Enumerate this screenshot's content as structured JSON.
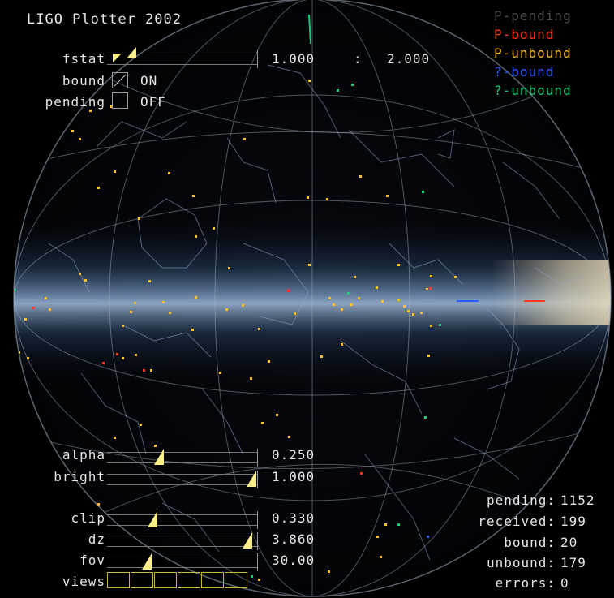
{
  "app": {
    "title": "LIGO Plotter 2002"
  },
  "legend": [
    {
      "label": "P-pending",
      "color": "#4a4a4a"
    },
    {
      "label": "P-bound",
      "color": "#ff3a1e"
    },
    {
      "label": "P-unbound",
      "color": "#ffc21a"
    },
    {
      "label": "?-bound",
      "color": "#2a5cff"
    },
    {
      "label": "?-unbound",
      "color": "#19d07a"
    }
  ],
  "controls": {
    "fstat": {
      "label": "fstat",
      "min": "1.000",
      "separator": ":",
      "max": "2.000"
    },
    "bound": {
      "label": "bound",
      "state": "ON"
    },
    "pending": {
      "label": "pending",
      "state": "OFF"
    },
    "alpha": {
      "label": "alpha",
      "value": "0.250",
      "level": 0.25
    },
    "bright": {
      "label": "bright",
      "value": "1.000",
      "level": 1.0
    },
    "clip": {
      "label": "clip",
      "value": "0.330",
      "level": 0.2
    },
    "dz": {
      "label": "dz",
      "value": "3.860",
      "level": 0.97
    },
    "fov": {
      "label": "fov",
      "value": "30.00",
      "level": 0.15
    },
    "views": {
      "label": "views",
      "count": 6
    }
  },
  "stats": [
    {
      "label": "pending:",
      "value": "1152"
    },
    {
      "label": "received:",
      "value": "199"
    },
    {
      "label": "bound:",
      "value": "20"
    },
    {
      "label": "unbound:",
      "value": "179"
    },
    {
      "label": "errors:",
      "value": "0"
    }
  ],
  "colors": {
    "unbound": "#ffc21a",
    "bound": "#ff3a1e",
    "q_unbound": "#19d07a",
    "q_bound": "#2a5cff",
    "galaxy": "#4a6f9c"
  }
}
